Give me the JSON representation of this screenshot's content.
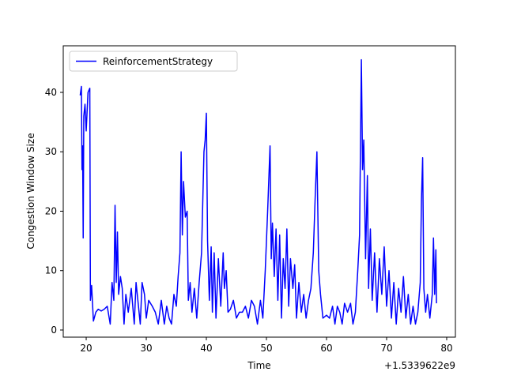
{
  "chart_data": {
    "type": "line",
    "xlabel": "Time",
    "ylabel": "Congestion Window Size",
    "x_offset_label": "+1.5339622e9",
    "legend": "upper left",
    "xlim": [
      1533962216.18,
      1533962281.45
    ],
    "ylim": [
      -1.2,
      47.84
    ],
    "xticks": [
      {
        "value": 1533962220,
        "label": "20"
      },
      {
        "value": 1533962230,
        "label": "30"
      },
      {
        "value": 1533962240,
        "label": "40"
      },
      {
        "value": 1533962250,
        "label": "50"
      },
      {
        "value": 1533962260,
        "label": "60"
      },
      {
        "value": 1533962270,
        "label": "70"
      },
      {
        "value": 1533962280,
        "label": "80"
      }
    ],
    "yticks": [
      0,
      10,
      20,
      30,
      40
    ],
    "x": [
      1533962219.0,
      1533962219.2,
      1533962219.3,
      1533962219.4,
      1533962219.5,
      1533962219.6,
      1533962219.8,
      1533962220.0,
      1533962220.3,
      1533962220.6,
      1533962220.7,
      1533962220.9,
      1533962221.0,
      1533962221.2,
      1533962221.6,
      1533962222.0,
      1533962222.5,
      1533962223.0,
      1533962223.5,
      1533962224.0,
      1533962224.3,
      1533962224.6,
      1533962224.8,
      1533962225.0,
      1533962225.2,
      1533962225.4,
      1533962225.7,
      1533962226.0,
      1533962226.3,
      1533962226.6,
      1533962227.0,
      1533962227.5,
      1533962228.0,
      1533962228.3,
      1533962228.6,
      1533962229.0,
      1533962229.3,
      1533962229.7,
      1533962230.0,
      1533962230.4,
      1533962231.0,
      1533962231.5,
      1533962232.0,
      1533962232.5,
      1533962233.0,
      1533962233.4,
      1533962233.8,
      1533962234.2,
      1533962234.6,
      1533962235.0,
      1533962235.3,
      1533962235.6,
      1533962235.8,
      1533962236.0,
      1533962236.2,
      1533962236.5,
      1533962236.8,
      1533962237.0,
      1533962237.3,
      1533962237.6,
      1533962238.0,
      1533962238.4,
      1533962238.8,
      1533962239.2,
      1533962239.6,
      1533962239.8,
      1533962240.0,
      1533962240.2,
      1533962240.5,
      1533962240.8,
      1533962241.0,
      1533962241.3,
      1533962241.6,
      1533962242.0,
      1533962242.4,
      1533962242.8,
      1533962243.0,
      1533962243.3,
      1533962243.6,
      1533962244.0,
      1533962244.5,
      1533962245.0,
      1533962245.5,
      1533962246.0,
      1533962246.5,
      1533962247.0,
      1533962247.5,
      1533962248.0,
      1533962248.5,
      1533962249.0,
      1533962249.4,
      1533962249.8,
      1533962250.2,
      1533962250.6,
      1533962250.8,
      1533962251.0,
      1533962251.3,
      1533962251.6,
      1533962251.9,
      1533962252.2,
      1533962252.5,
      1533962252.8,
      1533962253.1,
      1533962253.4,
      1533962253.7,
      1533962254.0,
      1533962254.4,
      1533962254.7,
      1533962255.0,
      1533962255.4,
      1533962255.8,
      1533962256.2,
      1533962256.6,
      1533962257.0,
      1533962257.4,
      1533962257.8,
      1533962258.1,
      1533962258.4,
      1533962258.7,
      1533962259.0,
      1533962259.4,
      1533962260.0,
      1533962260.5,
      1533962261.0,
      1533962261.4,
      1533962261.8,
      1533962262.2,
      1533962262.6,
      1533962263.0,
      1533962263.5,
      1533962264.0,
      1533962264.4,
      1533962264.8,
      1533962265.2,
      1533962265.5,
      1533962265.8,
      1533962266.0,
      1533962266.2,
      1533962266.5,
      1533962266.8,
      1533962267.0,
      1533962267.3,
      1533962267.6,
      1533962268.0,
      1533962268.4,
      1533962268.8,
      1533962269.2,
      1533962269.6,
      1533962270.0,
      1533962270.4,
      1533962270.8,
      1533962271.2,
      1533962271.6,
      1533962272.0,
      1533962272.4,
      1533962272.8,
      1533962273.2,
      1533962273.6,
      1533962274.0,
      1533962274.4,
      1533962274.8,
      1533962275.2,
      1533962275.6,
      1533962275.8,
      1533962276.0,
      1533962276.2,
      1533962276.5,
      1533962276.8,
      1533962277.2,
      1533962277.6,
      1533962277.8,
      1533962278.0,
      1533962278.2,
      1533962278.3
    ],
    "series": [
      {
        "name": "ReinforcementStrategy",
        "color": "#0000ff",
        "values": [
          39.5,
          41,
          27,
          31,
          15.5,
          36,
          38,
          33.5,
          40,
          40.7,
          5,
          7.5,
          5.5,
          1.5,
          3,
          3.5,
          3.2,
          3.5,
          4,
          1,
          8,
          5,
          21,
          8,
          16.5,
          6,
          9,
          7,
          1,
          6,
          3,
          7,
          1,
          8,
          5,
          1,
          8,
          6,
          2,
          5,
          4,
          3,
          1,
          5,
          1,
          4,
          2,
          1,
          6,
          4,
          9,
          13,
          30,
          16,
          25,
          19,
          20,
          5,
          8,
          3,
          7,
          2,
          8,
          13,
          30,
          32,
          36.5,
          15,
          5,
          14,
          3,
          13,
          2,
          12,
          4,
          13,
          7,
          10,
          3,
          3.5,
          5,
          2,
          3,
          3,
          4,
          2,
          5,
          4,
          1,
          5,
          2,
          10,
          20,
          31,
          12,
          18,
          9,
          17,
          5,
          16,
          2,
          12,
          7,
          17,
          4,
          12,
          7,
          11,
          2,
          8,
          3,
          6,
          2,
          5,
          7,
          13,
          22,
          30,
          10,
          6,
          2,
          2.5,
          2,
          4,
          1,
          4,
          3,
          1,
          4.5,
          3,
          4.5,
          1,
          3,
          10,
          16,
          45.5,
          27,
          32,
          12,
          26,
          7,
          17,
          5,
          13,
          3,
          12,
          6,
          14,
          4,
          10,
          2,
          8,
          1,
          7,
          3,
          9,
          2,
          6,
          1,
          4,
          1,
          3,
          8,
          22,
          29,
          7,
          3,
          6,
          2,
          6,
          15.5,
          6,
          13.5,
          4.5
        ]
      }
    ]
  }
}
